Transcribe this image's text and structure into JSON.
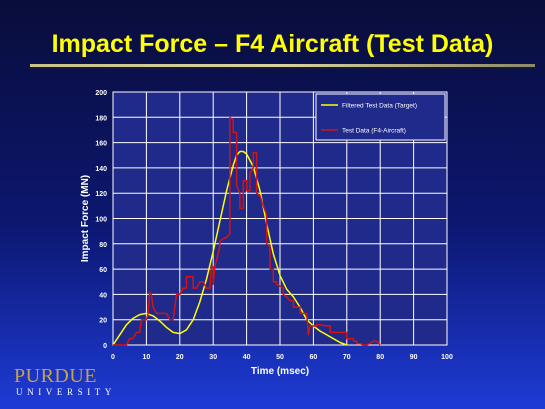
{
  "slide": {
    "title": "Impact Force – F4 Aircraft (Test Data)"
  },
  "logo": {
    "wordmark": "PURDUE",
    "subtext": "UNIVERSITY",
    "color": "#c8a24a"
  },
  "chart_data": {
    "type": "line",
    "xlabel": "Time (msec)",
    "ylabel": "Impact Force (MN)",
    "xlim": [
      0,
      100
    ],
    "ylim": [
      0,
      200
    ],
    "xticks": [
      0,
      10,
      20,
      30,
      40,
      50,
      60,
      70,
      80,
      90,
      100
    ],
    "yticks": [
      0,
      20,
      40,
      60,
      80,
      100,
      120,
      140,
      160,
      180,
      200
    ],
    "grid": true,
    "legend_position": "top-right",
    "series": [
      {
        "name": "Filtered Test Data (Target)",
        "color": "#ffff00",
        "points": [
          [
            0,
            0
          ],
          [
            2,
            8
          ],
          [
            4,
            16
          ],
          [
            6,
            21
          ],
          [
            8,
            24
          ],
          [
            10,
            25
          ],
          [
            12,
            23
          ],
          [
            14,
            19
          ],
          [
            16,
            14
          ],
          [
            18,
            10
          ],
          [
            20,
            9
          ],
          [
            22,
            12
          ],
          [
            24,
            20
          ],
          [
            26,
            34
          ],
          [
            28,
            52
          ],
          [
            30,
            74
          ],
          [
            32,
            98
          ],
          [
            34,
            122
          ],
          [
            36,
            142
          ],
          [
            37,
            150
          ],
          [
            38,
            153
          ],
          [
            39,
            153
          ],
          [
            40,
            151
          ],
          [
            42,
            141
          ],
          [
            44,
            122
          ],
          [
            46,
            96
          ],
          [
            48,
            72
          ],
          [
            50,
            55
          ],
          [
            52,
            44
          ],
          [
            54,
            38
          ],
          [
            56,
            30
          ],
          [
            58,
            20
          ],
          [
            60,
            15
          ],
          [
            62,
            11
          ],
          [
            64,
            8
          ],
          [
            66,
            5
          ],
          [
            68,
            2
          ],
          [
            70,
            0
          ]
        ]
      },
      {
        "name": "Test Data (F4-Aircraft)",
        "color": "#d21414",
        "points": [
          [
            0,
            0
          ],
          [
            4,
            0
          ],
          [
            5,
            5
          ],
          [
            6,
            5
          ],
          [
            7,
            10
          ],
          [
            8,
            10
          ],
          [
            8.5,
            20
          ],
          [
            10,
            20
          ],
          [
            10.5,
            25
          ],
          [
            11,
            42
          ],
          [
            11.5,
            40
          ],
          [
            12,
            30
          ],
          [
            13,
            25
          ],
          [
            16,
            25
          ],
          [
            17,
            20
          ],
          [
            18,
            20
          ],
          [
            19,
            40
          ],
          [
            20,
            40
          ],
          [
            21,
            45
          ],
          [
            22,
            45
          ],
          [
            22,
            54
          ],
          [
            24,
            54
          ],
          [
            24,
            45
          ],
          [
            25,
            45
          ],
          [
            26,
            50
          ],
          [
            27,
            50
          ],
          [
            28,
            45
          ],
          [
            29,
            45
          ],
          [
            29.5,
            62
          ],
          [
            30,
            62
          ],
          [
            30,
            48
          ],
          [
            30.5,
            62
          ],
          [
            32,
            78
          ],
          [
            32,
            82
          ],
          [
            33,
            84
          ],
          [
            34,
            85
          ],
          [
            35,
            88
          ],
          [
            35,
            180
          ],
          [
            36,
            178
          ],
          [
            36,
            168
          ],
          [
            37,
            168
          ],
          [
            37,
            126
          ],
          [
            38,
            120
          ],
          [
            38,
            108
          ],
          [
            39,
            108
          ],
          [
            39,
            130
          ],
          [
            40,
            130
          ],
          [
            40,
            122
          ],
          [
            41,
            122
          ],
          [
            41,
            136
          ],
          [
            42,
            140
          ],
          [
            42,
            152
          ],
          [
            43,
            152
          ],
          [
            43,
            120
          ],
          [
            44,
            118
          ],
          [
            45,
            110
          ],
          [
            46,
            103
          ],
          [
            46,
            80
          ],
          [
            47,
            78
          ],
          [
            47,
            60
          ],
          [
            48,
            60
          ],
          [
            48,
            50
          ],
          [
            49,
            50
          ],
          [
            49,
            48
          ],
          [
            51,
            45
          ],
          [
            51,
            40
          ],
          [
            52,
            38
          ],
          [
            53,
            35
          ],
          [
            54,
            35
          ],
          [
            54,
            30
          ],
          [
            56,
            30
          ],
          [
            56,
            25
          ],
          [
            58,
            25
          ],
          [
            58.5,
            8
          ],
          [
            59,
            15
          ],
          [
            61,
            15
          ],
          [
            61,
            16
          ],
          [
            62,
            16
          ],
          [
            64,
            15
          ],
          [
            65,
            15
          ],
          [
            65,
            10
          ],
          [
            70,
            10
          ],
          [
            70,
            5
          ],
          [
            72,
            5
          ],
          [
            72,
            3
          ],
          [
            73,
            3
          ],
          [
            73,
            1
          ],
          [
            74,
            1
          ],
          [
            75,
            0
          ],
          [
            76,
            0
          ],
          [
            78,
            3
          ],
          [
            79,
            3
          ],
          [
            80,
            0
          ]
        ]
      }
    ]
  }
}
